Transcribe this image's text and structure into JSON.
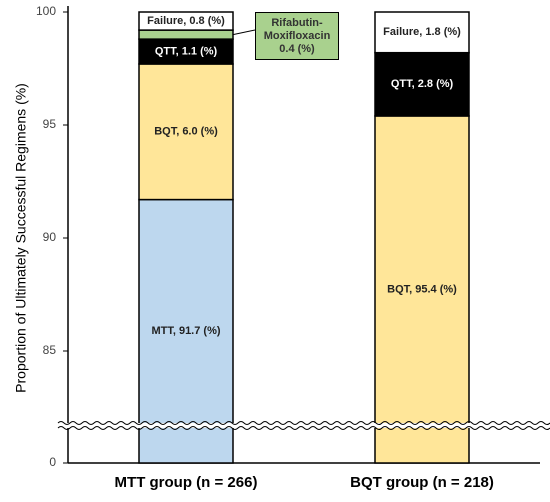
{
  "chart_data": {
    "type": "stacked_bar",
    "y_label": "Proportion of Ultimately Successful Regimens (%)",
    "categories": [
      "MTT group (n = 266)",
      "BQT group (n = 218)"
    ],
    "series": [
      {
        "name": "MTT",
        "color": "#bdd7ee",
        "values": [
          91.7,
          null
        ],
        "value_labels": [
          "MTT, 91.7 (%)",
          null
        ]
      },
      {
        "name": "BQT",
        "color": "#ffe699",
        "values": [
          6.0,
          95.4
        ],
        "value_labels": [
          "BQT, 6.0 (%)",
          "BQT, 95.4 (%)"
        ]
      },
      {
        "name": "QTT",
        "color": "#000000",
        "values": [
          1.1,
          2.8
        ],
        "value_labels": [
          "QTT, 1.1 (%)",
          "QTT, 2.8 (%)"
        ]
      },
      {
        "name": "Rifabutin-Moxifloxacin",
        "color": "#a9d18e",
        "values": [
          0.4,
          null
        ],
        "value_labels": [
          "Rifabutin-Moxifloxacin 0.4 (%)",
          null
        ]
      },
      {
        "name": "Failure",
        "color": "#ffffff",
        "values": [
          0.8,
          1.8
        ],
        "value_labels": [
          "Failure, 0.8 (%)",
          "Failure, 1.8 (%)"
        ]
      }
    ],
    "ylim": [
      0,
      100
    ],
    "yticks": [
      0,
      85,
      90,
      95,
      100
    ],
    "axis_break": true
  }
}
